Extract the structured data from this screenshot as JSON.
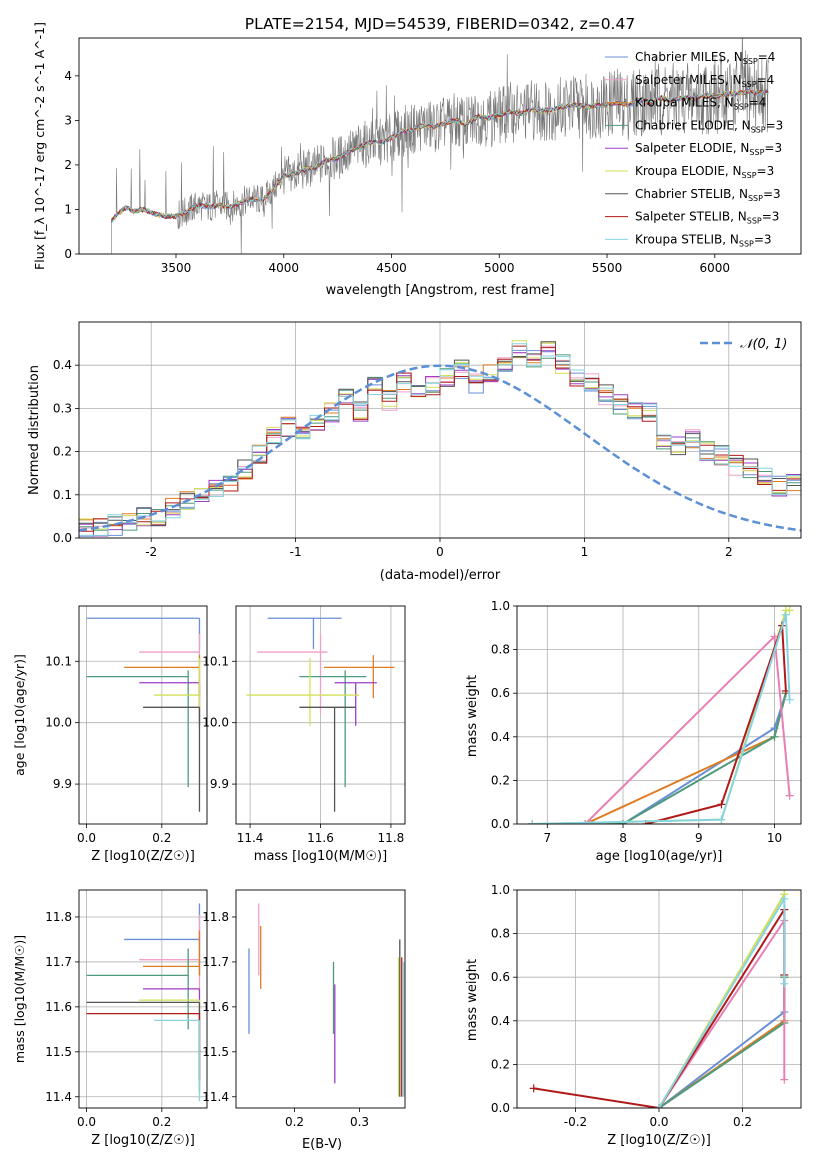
{
  "colors": {
    "grid": "#b0b0b0",
    "model_series": [
      "#6a8fd6",
      "#f0a0c8",
      "#e07b22",
      "#4e9a7a",
      "#9b3fc4",
      "#d4e05a",
      "#555555",
      "#b01a1a",
      "#86d4e0"
    ],
    "data_flux": "#777777",
    "normal_curve": "#5b8fd6",
    "weight_series": [
      "#6a8fd6",
      "#e07b22",
      "#4e9a7a",
      "#d4e05a",
      "#e77fb5",
      "#b01a1a",
      "#86d4e0",
      "#ffa07a",
      "#a0c040"
    ]
  },
  "chart_data": [
    {
      "type": "line",
      "panel": "spectrum",
      "title": "PLATE=2154, MJD=54539, FIBERID=0342, z=0.47",
      "xlabel": "wavelength [Angstrom, rest frame]",
      "ylabel": "Flux [f_λ 10^-17 erg cm^-2 s^-1 A^-1]",
      "xlim": [
        3050,
        6400
      ],
      "ylim": [
        0,
        4.85
      ],
      "xticks": [
        3500,
        4000,
        4500,
        5000,
        5500,
        6000
      ],
      "yticks": [
        0,
        1,
        2,
        3,
        4
      ],
      "grid": false,
      "legend_position": "top-right",
      "legend": [
        "Chabrier MILES, N_SSP=4",
        "Salpeter MILES, N_SSP=4",
        "Kroupa MILES, N_SSP=4",
        "Chabrier ELODIE, N_SSP=3",
        "Salpeter ELODIE, N_SSP=3",
        "Kroupa ELODIE, N_SSP=3",
        "Chabrier STELIB, N_SSP=3",
        "Salpeter STELIB, N_SSP=3",
        "Kroupa STELIB, N_SSP=3"
      ],
      "series": [
        {
          "name": "data",
          "x": [
            3200,
            3230,
            3270,
            3300,
            3350,
            3400,
            3450,
            3500,
            3550,
            3600,
            3650,
            3700,
            3750,
            3800,
            3850,
            3900,
            3950,
            4000,
            4050,
            4100,
            4150,
            4200,
            4250,
            4300,
            4350,
            4400,
            4450,
            4500,
            4550,
            4600,
            4650,
            4700,
            4750,
            4800,
            4850,
            4900,
            4950,
            5000,
            5050,
            5100,
            5150,
            5200,
            5250,
            5300,
            5350,
            5400,
            5450,
            5500,
            5550,
            5600,
            5650,
            5700,
            5750,
            5800,
            5850,
            5900,
            5950,
            6000,
            6050,
            6100,
            6150,
            6200,
            6250
          ],
          "y": [
            0.75,
            0.9,
            1.05,
            0.95,
            1.0,
            0.9,
            0.85,
            0.85,
            0.95,
            1.1,
            1.05,
            1.1,
            1.05,
            1.15,
            1.25,
            1.2,
            1.45,
            1.75,
            1.8,
            1.9,
            1.95,
            2.1,
            2.15,
            2.3,
            2.4,
            2.5,
            2.5,
            2.6,
            2.75,
            2.8,
            2.9,
            2.85,
            2.95,
            3.0,
            2.9,
            3.1,
            3.05,
            3.1,
            3.2,
            3.15,
            3.25,
            3.2,
            3.25,
            3.3,
            3.35,
            3.3,
            3.35,
            3.35,
            3.4,
            3.35,
            3.45,
            3.4,
            3.5,
            3.45,
            3.5,
            3.5,
            3.55,
            3.55,
            3.6,
            3.6,
            3.65,
            3.6,
            3.65
          ]
        }
      ]
    },
    {
      "type": "line",
      "panel": "residual-histogram",
      "xlabel": "(data-model)/error",
      "ylabel": "Normed distribution",
      "xlim": [
        -2.5,
        2.5
      ],
      "ylim": [
        0,
        0.5
      ],
      "xticks": [
        -2,
        -1,
        0,
        1,
        2
      ],
      "yticks": [
        0.0,
        0.1,
        0.2,
        0.3,
        0.4
      ],
      "grid": true,
      "legend_position": "top-right",
      "legend": [
        "𝒩(0, 1)"
      ],
      "bin_width": 0.1,
      "bin_start": -2.5,
      "histogram": [
        0.02,
        0.02,
        0.03,
        0.04,
        0.05,
        0.05,
        0.07,
        0.09,
        0.1,
        0.11,
        0.12,
        0.16,
        0.19,
        0.24,
        0.26,
        0.25,
        0.27,
        0.29,
        0.33,
        0.29,
        0.35,
        0.32,
        0.36,
        0.33,
        0.35,
        0.37,
        0.39,
        0.36,
        0.38,
        0.4,
        0.44,
        0.41,
        0.43,
        0.4,
        0.37,
        0.36,
        0.33,
        0.31,
        0.3,
        0.29,
        0.22,
        0.21,
        0.23,
        0.2,
        0.19,
        0.17,
        0.16,
        0.14,
        0.12,
        0.13,
        0.11,
        0.1,
        0.09,
        0.08,
        0.08,
        0.07,
        0.06,
        0.05,
        0.05,
        0.04,
        0.04,
        0.04,
        0.03,
        0.03,
        0.04,
        0.03,
        0.03,
        0.02,
        0.03,
        0.02
      ]
    },
    {
      "type": "scatter",
      "panel": "age-vs-metallicity",
      "xlabel": "Z [log10(Z/Z☉)]",
      "ylabel": "age [log10(age/yr)]",
      "xlim": [
        -0.02,
        0.32
      ],
      "ylim": [
        9.835,
        10.19
      ],
      "xticks": [
        0.0,
        0.2
      ],
      "yticks": [
        9.9,
        10.0,
        10.1
      ],
      "grid": true,
      "points": [
        {
          "x": 0.3,
          "y": 10.17,
          "xerr": [
            0.3,
            0.0
          ],
          "yerr": [
            0.05,
            0.0
          ]
        },
        {
          "x": 0.3,
          "y": 10.115,
          "xerr": [
            0.16,
            0.0
          ],
          "yerr": [
            0.1,
            0.03
          ]
        },
        {
          "x": 0.3,
          "y": 10.09,
          "xerr": [
            0.2,
            0.0
          ],
          "yerr": [
            0.05,
            0.02
          ]
        },
        {
          "x": 0.27,
          "y": 10.075,
          "xerr": [
            0.27,
            0.0
          ],
          "yerr": [
            0.18,
            0.01
          ]
        },
        {
          "x": 0.3,
          "y": 10.065,
          "xerr": [
            0.16,
            0.0
          ],
          "yerr": [
            0.07,
            0.0
          ]
        },
        {
          "x": 0.3,
          "y": 10.045,
          "xerr": [
            0.12,
            0.0
          ],
          "yerr": [
            0.05,
            0.06
          ]
        },
        {
          "x": 0.3,
          "y": 10.025,
          "xerr": [
            0.15,
            0.0
          ],
          "yerr": [
            0.17,
            0.0
          ]
        }
      ]
    },
    {
      "type": "scatter",
      "panel": "age-vs-mass",
      "xlabel": "mass [log10(M/M☉)]",
      "xlim": [
        11.36,
        11.84
      ],
      "ylim": [
        9.835,
        10.19
      ],
      "xticks": [
        11.4,
        11.6,
        11.8
      ],
      "yticks": [
        9.9,
        10.0,
        10.1
      ],
      "grid": true,
      "points": [
        {
          "x": 11.58,
          "y": 10.17,
          "xerr": [
            0.13,
            0.08
          ],
          "yerr": [
            0.05,
            0.0
          ]
        },
        {
          "x": 11.6,
          "y": 10.115,
          "xerr": [
            0.18,
            0.02
          ],
          "yerr": [
            0.1,
            0.03
          ]
        },
        {
          "x": 11.75,
          "y": 10.09,
          "xerr": [
            0.14,
            0.06
          ],
          "yerr": [
            0.05,
            0.02
          ]
        },
        {
          "x": 11.67,
          "y": 10.075,
          "xerr": [
            0.13,
            0.06
          ],
          "yerr": [
            0.18,
            0.01
          ]
        },
        {
          "x": 11.7,
          "y": 10.065,
          "xerr": [
            0.06,
            0.06
          ],
          "yerr": [
            0.07,
            0.0
          ]
        },
        {
          "x": 11.57,
          "y": 10.045,
          "xerr": [
            0.18,
            0.14
          ],
          "yerr": [
            0.05,
            0.06
          ]
        },
        {
          "x": 11.64,
          "y": 10.025,
          "xerr": [
            0.1,
            0.06
          ],
          "yerr": [
            0.17,
            0.0
          ]
        }
      ]
    },
    {
      "type": "line",
      "panel": "mass-weight-vs-age",
      "xlabel": "age [log10(age/yr)]",
      "ylabel": "mass weight",
      "xlim": [
        6.6,
        10.35
      ],
      "ylim": [
        0,
        1
      ],
      "xticks": [
        7,
        8,
        9,
        10
      ],
      "yticks": [
        0.0,
        0.2,
        0.4,
        0.6,
        0.8,
        1.0
      ],
      "grid": true,
      "series": [
        {
          "x": [
            6.8,
            8.0,
            10.0,
            10.15
          ],
          "y": [
            0.0,
            0.0,
            0.44,
            0.6
          ]
        },
        {
          "x": [
            6.8,
            7.5,
            10.0,
            10.15
          ],
          "y": [
            0.0,
            0.0,
            0.4,
            0.6
          ]
        },
        {
          "x": [
            6.8,
            8.0,
            10.0,
            10.15
          ],
          "y": [
            0.0,
            0.0,
            0.4,
            0.6
          ]
        },
        {
          "x": [
            6.8,
            9.3,
            10.15,
            10.2
          ],
          "y": [
            0.0,
            0.02,
            0.98,
            0.98
          ]
        },
        {
          "x": [
            6.8,
            7.5,
            10.0,
            10.2
          ],
          "y": [
            0.0,
            0.0,
            0.86,
            0.13
          ]
        },
        {
          "x": [
            8.3,
            9.3,
            10.1,
            10.15
          ],
          "y": [
            0.0,
            0.09,
            0.91,
            0.61
          ]
        },
        {
          "x": [
            6.8,
            9.3,
            10.15,
            10.2
          ],
          "y": [
            0.0,
            0.02,
            0.96,
            0.57
          ]
        }
      ]
    },
    {
      "type": "scatter",
      "panel": "mass-vs-metallicity",
      "xlabel": "Z [log10(Z/Z☉)]",
      "ylabel": "mass [log10(M/M☉)]",
      "xlim": [
        -0.02,
        0.32
      ],
      "ylim": [
        11.375,
        11.86
      ],
      "xticks": [
        0.0,
        0.2
      ],
      "yticks": [
        11.4,
        11.5,
        11.6,
        11.7,
        11.8
      ],
      "grid": true,
      "points": [
        {
          "x": 0.3,
          "y": 11.75,
          "xerr": [
            0.2,
            0.0
          ],
          "yerr": [
            0.08,
            0.08
          ]
        },
        {
          "x": 0.3,
          "y": 11.705,
          "xerr": [
            0.16,
            0.0
          ],
          "yerr": [
            0.07,
            0.1
          ]
        },
        {
          "x": 0.3,
          "y": 11.69,
          "xerr": [
            0.15,
            0.0
          ],
          "yerr": [
            0.02,
            0.08
          ]
        },
        {
          "x": 0.27,
          "y": 11.67,
          "xerr": [
            0.27,
            0.0
          ],
          "yerr": [
            0.12,
            0.06
          ]
        },
        {
          "x": 0.3,
          "y": 11.64,
          "xerr": [
            0.15,
            0.0
          ],
          "yerr": [
            0.2,
            0.0
          ]
        },
        {
          "x": 0.3,
          "y": 11.615,
          "xerr": [
            0.16,
            0.0
          ],
          "yerr": [
            0.2,
            0.0
          ]
        },
        {
          "x": 0.3,
          "y": 11.61,
          "xerr": [
            0.3,
            0.0
          ],
          "yerr": [
            0.2,
            0.0
          ]
        },
        {
          "x": 0.3,
          "y": 11.585,
          "xerr": [
            0.3,
            0.0
          ],
          "yerr": [
            0.15,
            0.0
          ]
        },
        {
          "x": 0.3,
          "y": 11.57,
          "xerr": [
            0.12,
            0.0
          ],
          "yerr": [
            0.18,
            0.0
          ]
        }
      ]
    },
    {
      "type": "scatter",
      "panel": "mass-vs-extinction",
      "xlabel": "E(B-V)",
      "xlim": [
        0.11,
        0.37
      ],
      "ylim": [
        11.375,
        11.86
      ],
      "xticks": [
        0.2,
        0.3
      ],
      "yticks": [
        11.4,
        11.5,
        11.6,
        11.7,
        11.8
      ],
      "grid": false,
      "points": [
        {
          "x": 0.13,
          "y": 11.6,
          "yerr": [
            0.06,
            0.13
          ]
        },
        {
          "x": 0.145,
          "y": 11.75,
          "yerr": [
            0.08,
            0.08
          ]
        },
        {
          "x": 0.148,
          "y": 11.7,
          "yerr": [
            0.06,
            0.08
          ]
        },
        {
          "x": 0.26,
          "y": 11.67,
          "yerr": [
            0.13,
            0.03
          ]
        },
        {
          "x": 0.262,
          "y": 11.55,
          "yerr": [
            0.12,
            0.1
          ]
        },
        {
          "x": 0.36,
          "y": 11.5,
          "yerr": [
            0.1,
            0.21
          ]
        },
        {
          "x": 0.362,
          "y": 11.45,
          "yerr": [
            0.05,
            0.3
          ]
        },
        {
          "x": 0.365,
          "y": 11.58,
          "yerr": [
            0.18,
            0.13
          ]
        },
        {
          "x": 0.368,
          "y": 11.55,
          "yerr": [
            0.15,
            0.15
          ]
        }
      ]
    },
    {
      "type": "line",
      "panel": "mass-weight-vs-metallicity",
      "xlabel": "Z [log10(Z/Z☉)]",
      "ylabel": "mass weight",
      "xlim": [
        -0.34,
        0.34
      ],
      "ylim": [
        0,
        1
      ],
      "xticks": [
        -0.2,
        0.0,
        0.2
      ],
      "yticks": [
        0.0,
        0.2,
        0.4,
        0.6,
        0.8,
        1.0
      ],
      "grid": true,
      "series": [
        {
          "x": [
            0.0,
            0.3,
            0.3
          ],
          "y": [
            0.0,
            0.44,
            0.6
          ]
        },
        {
          "x": [
            0.0,
            0.3,
            0.3
          ],
          "y": [
            0.0,
            0.4,
            0.6
          ]
        },
        {
          "x": [
            0.0,
            0.3,
            0.3
          ],
          "y": [
            0.0,
            0.39,
            0.6
          ]
        },
        {
          "x": [
            0.0,
            0.3,
            0.3
          ],
          "y": [
            0.0,
            0.98,
            0.98
          ]
        },
        {
          "x": [
            0.0,
            0.3,
            0.3
          ],
          "y": [
            0.0,
            0.86,
            0.13
          ]
        },
        {
          "x": [
            -0.3,
            0.0,
            0.3,
            0.3
          ],
          "y": [
            0.09,
            0.0,
            0.91,
            0.61
          ]
        },
        {
          "x": [
            0.0,
            0.3,
            0.3
          ],
          "y": [
            0.0,
            0.96,
            0.57
          ]
        }
      ]
    }
  ],
  "labels": {
    "spectrum_title": "PLATE=2154, MJD=54539, FIBERID=0342, z=0.47",
    "spectrum_xlabel": "wavelength [Angstrom, rest frame]",
    "hist_xlabel": "(data-model)/error",
    "hist_ylabel": "Normed distribution",
    "normal_legend": "𝒩(0, 1)",
    "mass_weight_label": "mass weight",
    "ebv_label": "E(B-V)"
  }
}
